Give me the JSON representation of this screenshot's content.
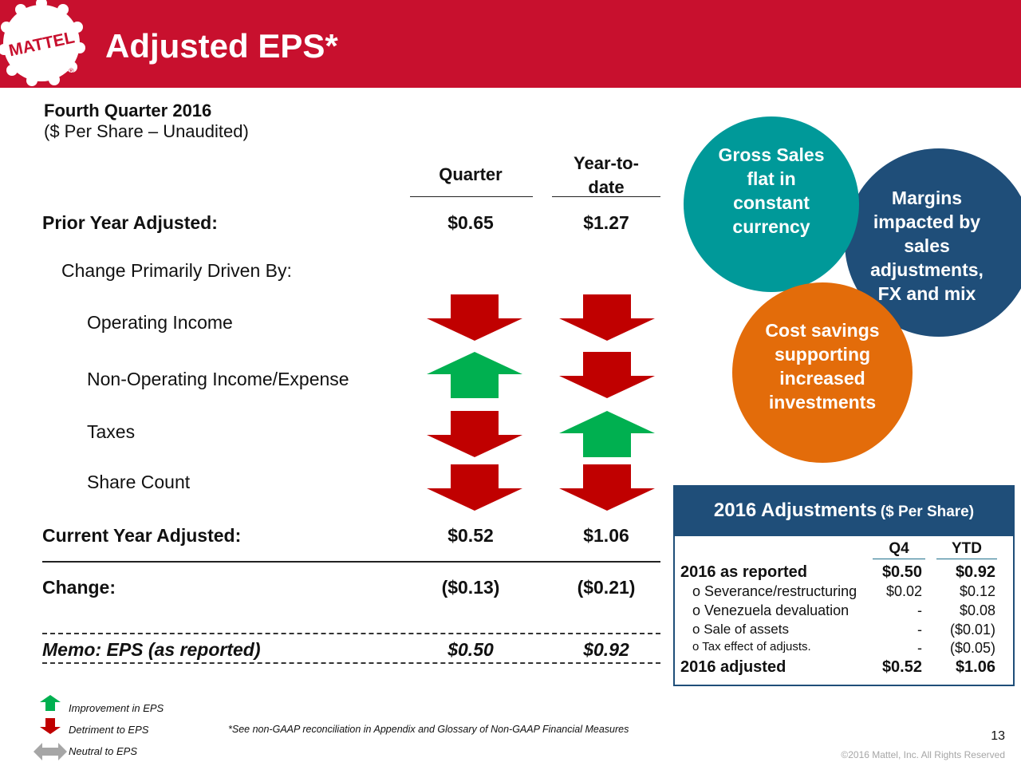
{
  "header": {
    "title": "Adjusted EPS*",
    "logo_text": "MATTEL",
    "brand_color": "#c8102e"
  },
  "subtitle": {
    "line1": "Fourth Quarter 2016",
    "line2": "($ Per Share – Unaudited)"
  },
  "columns": {
    "quarter": "Quarter",
    "ytd": "Year-to-date"
  },
  "rows": {
    "prior": {
      "label": "Prior Year Adjusted:",
      "q": "$0.65",
      "ytd": "$1.27"
    },
    "driven_by": "Change Primarily Driven By:",
    "drivers": [
      {
        "label": "Operating Income",
        "q": "down",
        "ytd": "down"
      },
      {
        "label": "Non-Operating Income/Expense",
        "q": "up",
        "ytd": "down"
      },
      {
        "label": "Taxes",
        "q": "down",
        "ytd": "up"
      },
      {
        "label": "Share Count",
        "q": "down",
        "ytd": "down"
      }
    ],
    "current": {
      "label": "Current Year Adjusted:",
      "q": "$0.52",
      "ytd": "$1.06"
    },
    "change": {
      "label": "Change:",
      "q": "($0.13)",
      "ytd": "($0.21)"
    },
    "memo": {
      "label": "Memo: EPS (as reported)",
      "q": "$0.50",
      "ytd": "$0.92"
    }
  },
  "circles": {
    "gross_sales": [
      "Gross Sales",
      "flat in",
      "constant",
      "currency"
    ],
    "margins": [
      "Margins",
      "impacted by",
      "sales",
      "adjustments,",
      "FX and mix"
    ],
    "cost": [
      "Cost savings",
      "supporting",
      "increased",
      "investments"
    ]
  },
  "adjustments": {
    "title": "2016 Adjustments",
    "title_suffix": "($ Per Share)",
    "col_q4": "Q4",
    "col_ytd": "YTD",
    "reported": {
      "label": "2016 as reported",
      "q4": "$0.50",
      "ytd": "$0.92"
    },
    "items": [
      {
        "label": "Severance/restructuring",
        "q4": "$0.02",
        "ytd": "$0.12"
      },
      {
        "label": "Venezuela devaluation",
        "q4": "-",
        "ytd": "$0.08"
      },
      {
        "label": "Sale of assets",
        "q4": "-",
        "ytd": "($0.01)"
      },
      {
        "label": "Tax effect of adjusts.",
        "q4": "-",
        "ytd": "($0.05)"
      }
    ],
    "adjusted": {
      "label": "2016 adjusted",
      "q4": "$0.52",
      "ytd": "$1.06"
    }
  },
  "legend": {
    "improvement": "Improvement in EPS",
    "detriment": "Detriment to EPS",
    "neutral": "Neutral to EPS"
  },
  "footnote": "*See non-GAAP reconciliation in Appendix and Glossary of Non-GAAP Financial Measures",
  "page_number": "13",
  "copyright": "©2016 Mattel, Inc.  All Rights Reserved",
  "colors": {
    "up_arrow": "#00b050",
    "down_arrow": "#c00000",
    "teal": "#009999",
    "navy": "#1f4e79",
    "orange": "#e36c0a"
  }
}
